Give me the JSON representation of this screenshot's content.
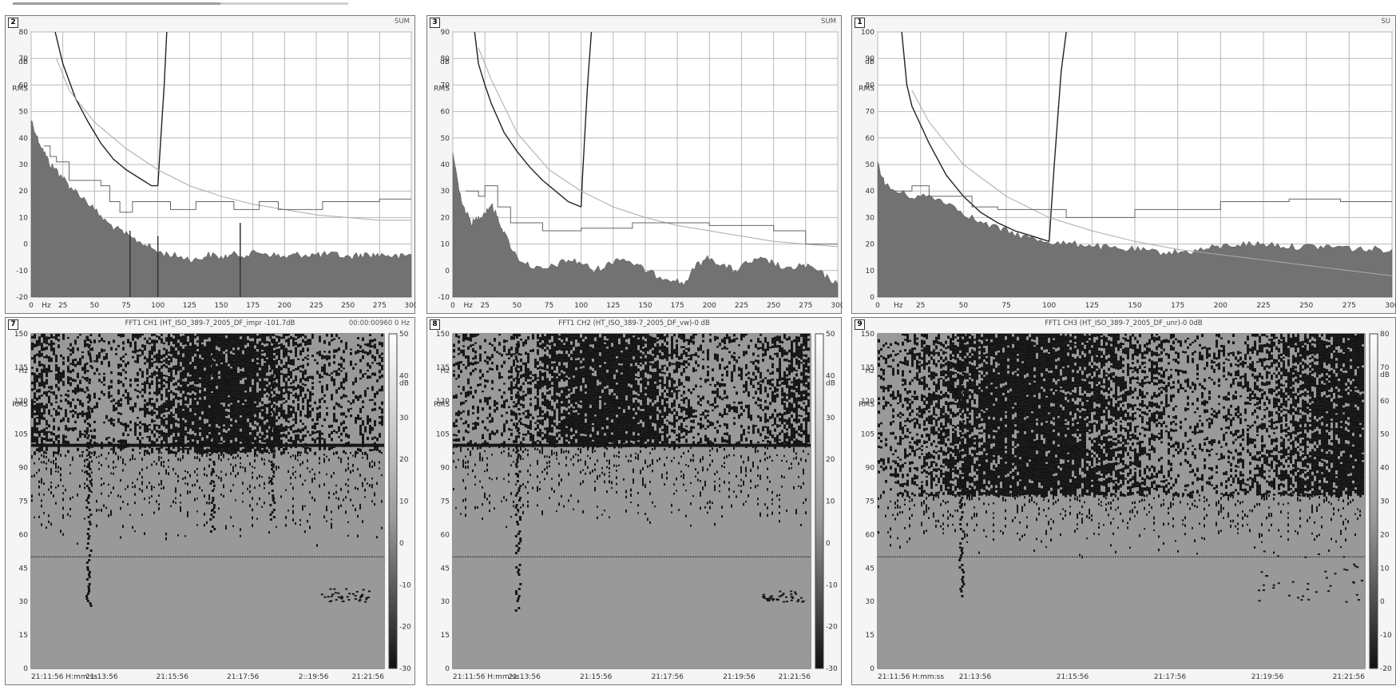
{
  "colors": {
    "plot_bg": "#ffffff",
    "grid": "#b9b9b9",
    "spectrum_fill": "#727272",
    "curve": "#222222",
    "curve_thin": "#aaaaaa",
    "step": "#666666",
    "spectrogram_light": "#999999",
    "spectrogram_dark": "#151515"
  },
  "panels": [
    {
      "number": "2",
      "header_text": "",
      "right_label": "SUM",
      "unit_labels": [
        "dB",
        "RMS"
      ],
      "chart_data": {
        "type": "area",
        "xlabel": "Hz",
        "xlim": [
          0,
          300
        ],
        "ylim": [
          -20,
          80
        ],
        "x_ticks": [
          "0",
          "Hz",
          "25",
          "50",
          "75",
          "100",
          "125",
          "150",
          "175",
          "200",
          "225",
          "250",
          "275",
          "300"
        ],
        "y_ticks": [
          "80",
          "70",
          "60",
          "50",
          "40",
          "30",
          "20",
          "10",
          "0",
          "-10",
          "-20"
        ],
        "series": [
          {
            "name": "",
            "style": "area",
            "x": [
              0,
              5,
              10,
              15,
              20,
              25,
              30,
              40,
              50,
              60,
              70,
              80,
              90,
              100,
              110,
              120,
              130,
              140,
              150,
              160,
              170,
              180,
              190,
              200,
              210,
              220,
              230,
              240,
              250,
              260,
              270,
              280,
              290,
              300
            ],
            "y": [
              47,
              40,
              35,
              30,
              28,
              25,
              22,
              18,
              13,
              8,
              5,
              2,
              0,
              -3,
              -4,
              -5,
              -6,
              -4,
              -5,
              -4,
              -4,
              -3,
              -4,
              -5,
              -4,
              -4,
              -4,
              -4,
              -5,
              -4,
              -4,
              -4,
              -5,
              -4
            ]
          },
          {
            "name": "",
            "style": "curve",
            "x": [
              19,
              25,
              35,
              45,
              55,
              65,
              75,
              85,
              95,
              100
            ],
            "y": [
              80,
              68,
              55,
              46,
              38,
              32,
              28,
              25,
              22,
              22
            ]
          },
          {
            "name": "",
            "style": "curve",
            "x": [
              100,
              101,
              105,
              107
            ],
            "y": [
              22,
              30,
              60,
              80
            ]
          },
          {
            "name": "",
            "style": "thin",
            "x": [
              20,
              30,
              50,
              75,
              100,
              125,
              150,
              175,
              200,
              225,
              250,
              275,
              300
            ],
            "y": [
              70,
              58,
              46,
              36,
              28,
              22,
              18,
              15,
              13,
              11,
              10,
              9,
              9
            ]
          },
          {
            "name": "",
            "style": "step",
            "x": [
              10,
              15,
              15,
              20,
              20,
              30,
              30,
              55,
              55,
              62,
              62,
              70,
              70,
              80,
              80,
              110,
              110,
              130,
              130,
              160,
              160,
              180,
              180,
              195,
              195,
              230,
              230,
              275,
              275,
              300
            ],
            "y": [
              37,
              37,
              33,
              33,
              31,
              31,
              24,
              24,
              22,
              22,
              16,
              16,
              12,
              12,
              16,
              16,
              13,
              13,
              16,
              16,
              13,
              13,
              16,
              16,
              13,
              13,
              16,
              16,
              17,
              17
            ]
          }
        ],
        "spikes": [
          {
            "x": 100,
            "y": 3
          },
          {
            "x": 165,
            "y": 8
          },
          {
            "x": 78,
            "y": 5
          }
        ]
      }
    },
    {
      "number": "3",
      "header_text": "",
      "right_label": "SUM",
      "unit_labels": [
        "dB",
        "RMS"
      ],
      "chart_data": {
        "type": "area",
        "xlabel": "Hz",
        "xlim": [
          0,
          300
        ],
        "ylim": [
          -10,
          90
        ],
        "x_ticks": [
          "0",
          "Hz",
          "25",
          "50",
          "75",
          "100",
          "125",
          "150",
          "175",
          "200",
          "225",
          "250",
          "275",
          "300"
        ],
        "y_ticks": [
          "90",
          "80",
          "70",
          "60",
          "50",
          "40",
          "30",
          "20",
          "10",
          "0",
          "-10"
        ],
        "series": [
          {
            "name": "",
            "style": "area",
            "x": [
              0,
              5,
              10,
              15,
              20,
              25,
              30,
              35,
              40,
              50,
              60,
              70,
              80,
              90,
              100,
              110,
              120,
              130,
              140,
              150,
              160,
              170,
              180,
              190,
              200,
              210,
              220,
              230,
              240,
              250,
              260,
              270,
              280,
              290,
              300
            ],
            "y": [
              45,
              30,
              22,
              18,
              20,
              22,
              25,
              20,
              14,
              5,
              2,
              0,
              2,
              4,
              3,
              0,
              2,
              5,
              3,
              0,
              -2,
              -3,
              -5,
              2,
              5,
              2,
              0,
              3,
              4,
              3,
              0,
              2,
              1,
              -2,
              -5
            ]
          },
          {
            "name": "",
            "style": "curve",
            "x": [
              17,
              20,
              25,
              30,
              40,
              50,
              60,
              70,
              80,
              90,
              100
            ],
            "y": [
              90,
              78,
              70,
              63,
              52,
              45,
              39,
              34,
              30,
              26,
              24
            ]
          },
          {
            "name": "",
            "style": "curve",
            "x": [
              100,
              101,
              105,
              108
            ],
            "y": [
              24,
              35,
              70,
              90
            ]
          },
          {
            "name": "",
            "style": "thin",
            "x": [
              20,
              30,
              50,
              75,
              100,
              125,
              150,
              175,
              200,
              225,
              250,
              275,
              300
            ],
            "y": [
              84,
              72,
              52,
              38,
              30,
              24,
              20,
              17,
              15,
              13,
              11,
              10,
              9
            ]
          },
          {
            "name": "",
            "style": "step",
            "x": [
              10,
              20,
              20,
              25,
              25,
              35,
              35,
              45,
              45,
              70,
              70,
              100,
              100,
              140,
              140,
              200,
              200,
              250,
              250,
              275,
              275,
              300
            ],
            "y": [
              30,
              30,
              28,
              28,
              32,
              32,
              24,
              24,
              18,
              18,
              15,
              15,
              16,
              16,
              18,
              18,
              17,
              17,
              15,
              15,
              10,
              10
            ]
          }
        ],
        "spikes": []
      }
    },
    {
      "number": "1",
      "header_text": "",
      "right_label": "SU",
      "unit_labels": [
        "dB",
        "RMS"
      ],
      "chart_data": {
        "type": "area",
        "xlabel": "Hz",
        "xlim": [
          0,
          300
        ],
        "ylim": [
          0,
          100
        ],
        "x_ticks": [
          "0",
          "Hz",
          "25",
          "50",
          "75",
          "100",
          "125",
          "150",
          "175",
          "200",
          "225",
          "250",
          "275",
          "300"
        ],
        "y_ticks": [
          "100",
          "90",
          "80",
          "70",
          "60",
          "50",
          "40",
          "30",
          "20",
          "10",
          "0"
        ],
        "series": [
          {
            "name": "",
            "style": "area",
            "x": [
              0,
              5,
              10,
              20,
              30,
              40,
              50,
              60,
              70,
              80,
              90,
              100,
              110,
              120,
              130,
              140,
              150,
              160,
              170,
              180,
              190,
              200,
              210,
              220,
              230,
              240,
              250,
              260,
              270,
              280,
              290,
              300
            ],
            "y": [
              50,
              42,
              40,
              38,
              38,
              36,
              32,
              28,
              26,
              24,
              22,
              21,
              20,
              20,
              19,
              18,
              18,
              17,
              17,
              17,
              18,
              19,
              20,
              20,
              20,
              19,
              19,
              19,
              19,
              18,
              18,
              18
            ]
          },
          {
            "name": "",
            "style": "curve",
            "x": [
              14,
              17,
              20,
              30,
              40,
              50,
              60,
              70,
              80,
              90,
              100
            ],
            "y": [
              100,
              80,
              72,
              58,
              46,
              38,
              32,
              28,
              25,
              23,
              21
            ]
          },
          {
            "name": "",
            "style": "curve",
            "x": [
              100,
              103,
              107,
              110
            ],
            "y": [
              21,
              50,
              85,
              100
            ]
          },
          {
            "name": "",
            "style": "thin",
            "x": [
              20,
              30,
              50,
              75,
              100,
              125,
              150,
              175,
              200,
              225,
              250,
              275,
              300
            ],
            "y": [
              78,
              66,
              50,
              38,
              30,
              25,
              21,
              18,
              16,
              14,
              12,
              10,
              8
            ]
          },
          {
            "name": "",
            "style": "step",
            "x": [
              10,
              20,
              20,
              30,
              30,
              55,
              55,
              70,
              70,
              110,
              110,
              150,
              150,
              200,
              200,
              240,
              240,
              270,
              270,
              300
            ],
            "y": [
              40,
              40,
              42,
              42,
              38,
              38,
              34,
              34,
              33,
              33,
              30,
              30,
              33,
              33,
              36,
              36,
              37,
              37,
              36,
              36
            ]
          }
        ],
        "spikes": []
      }
    },
    {
      "number": "7",
      "header_text": "FFT1 CH1 (HT_ISO_389-7_2005_DF_impr -101.7dB",
      "right_label": "00:00:00960 0 Hz",
      "unit_labels": [
        "Hz",
        "RMS"
      ],
      "chart_data": {
        "type": "heatmap",
        "xlim": [
          "21:11:56",
          "21:21:56"
        ],
        "ylim": [
          0,
          150
        ],
        "x_ticks": [
          "21:11:56 H:mm:ss",
          "21:13:56",
          "21:15:56",
          "21:17:56",
          "2::19:56",
          "21:21:56"
        ],
        "y_ticks": [
          "150",
          "135",
          "120",
          "105",
          "90",
          "75",
          "60",
          "45",
          "30",
          "15",
          "0"
        ],
        "colorbar": {
          "label": "dB",
          "ticks": [
            "50",
            "40",
            "30",
            "20",
            "10",
            "0",
            "-10",
            "-20",
            "-30"
          ]
        },
        "threshold_hz": [
          100,
          100,
          100,
          100,
          100,
          100,
          100,
          100,
          100,
          100,
          100,
          100,
          100,
          100,
          100,
          100,
          100,
          100,
          100,
          100,
          100,
          100,
          100,
          100,
          100,
          100,
          100,
          100,
          100,
          100
        ],
        "dense_from_hz": 97,
        "sparse_from_hz": 55,
        "hline_hz": 100,
        "hline2_hz": 50,
        "bursts": [
          {
            "t": 0.16,
            "lo": 28
          },
          {
            "t": 0.51,
            "lo": 60
          },
          {
            "t": 0.68,
            "lo": 65
          }
        ],
        "late_band": {
          "t0": 0.82,
          "t1": 0.96,
          "lo": 30,
          "hi": 36
        }
      }
    },
    {
      "number": "8",
      "header_text": "FFT1 CH2 (HT_ISO_389-7_2005_DF_vw)-0 dB",
      "right_label": "",
      "unit_labels": [
        "Hz",
        "RMS"
      ],
      "chart_data": {
        "type": "heatmap",
        "xlim": [
          "21:11:56",
          "21:21:56"
        ],
        "ylim": [
          0,
          150
        ],
        "x_ticks": [
          "21:11:56 H:mm:ss",
          "21:13:56",
          "21:15:56",
          "21:17:56",
          "21:19:56",
          "21:21:56"
        ],
        "y_ticks": [
          "150",
          "135",
          "120",
          "105",
          "90",
          "75",
          "60",
          "45",
          "30",
          "15",
          "0"
        ],
        "colorbar": {
          "label": "dB",
          "ticks": [
            "50",
            "40",
            "30",
            "20",
            "10",
            "0",
            "-10",
            "-20",
            "-30"
          ]
        },
        "dense_from_hz": 100,
        "sparse_from_hz": 62,
        "hline_hz": 100,
        "hline2_hz": 50,
        "bursts": [
          {
            "t": 0.18,
            "lo": 25
          }
        ],
        "late_band": {
          "t0": 0.86,
          "t1": 0.98,
          "lo": 30,
          "hi": 35
        }
      }
    },
    {
      "number": "9",
      "header_text": "FFT1 CH3 (HT_ISO_389-7_2005_DF_unr)-0 0dB",
      "right_label": "",
      "unit_labels": [
        "Hz",
        "RMS"
      ],
      "chart_data": {
        "type": "heatmap",
        "xlim": [
          "21:11:56",
          "21:21:56"
        ],
        "ylim": [
          0,
          150
        ],
        "x_ticks": [
          "21:11:56 H:mm:ss",
          "21:13:56",
          "21:15:56",
          "21:17:56",
          "21:19:56",
          "21:21:56"
        ],
        "y_ticks": [
          "150",
          "135",
          "120",
          "105",
          "90",
          "75",
          "60",
          "45",
          "30",
          "15",
          "0"
        ],
        "colorbar": {
          "label": "dB",
          "ticks": [
            "80",
            "70",
            "60",
            "50",
            "40",
            "30",
            "20",
            "10",
            "0",
            "-10",
            "-20"
          ]
        },
        "dense_from_hz": 78,
        "sparse_from_hz": 50,
        "hline_hz": null,
        "hline2_hz": 50,
        "bursts": [
          {
            "t": 0.17,
            "lo": 32
          }
        ],
        "late_band": {
          "t0": 0.78,
          "t1": 1.0,
          "lo": 30,
          "hi": 55
        }
      }
    }
  ]
}
